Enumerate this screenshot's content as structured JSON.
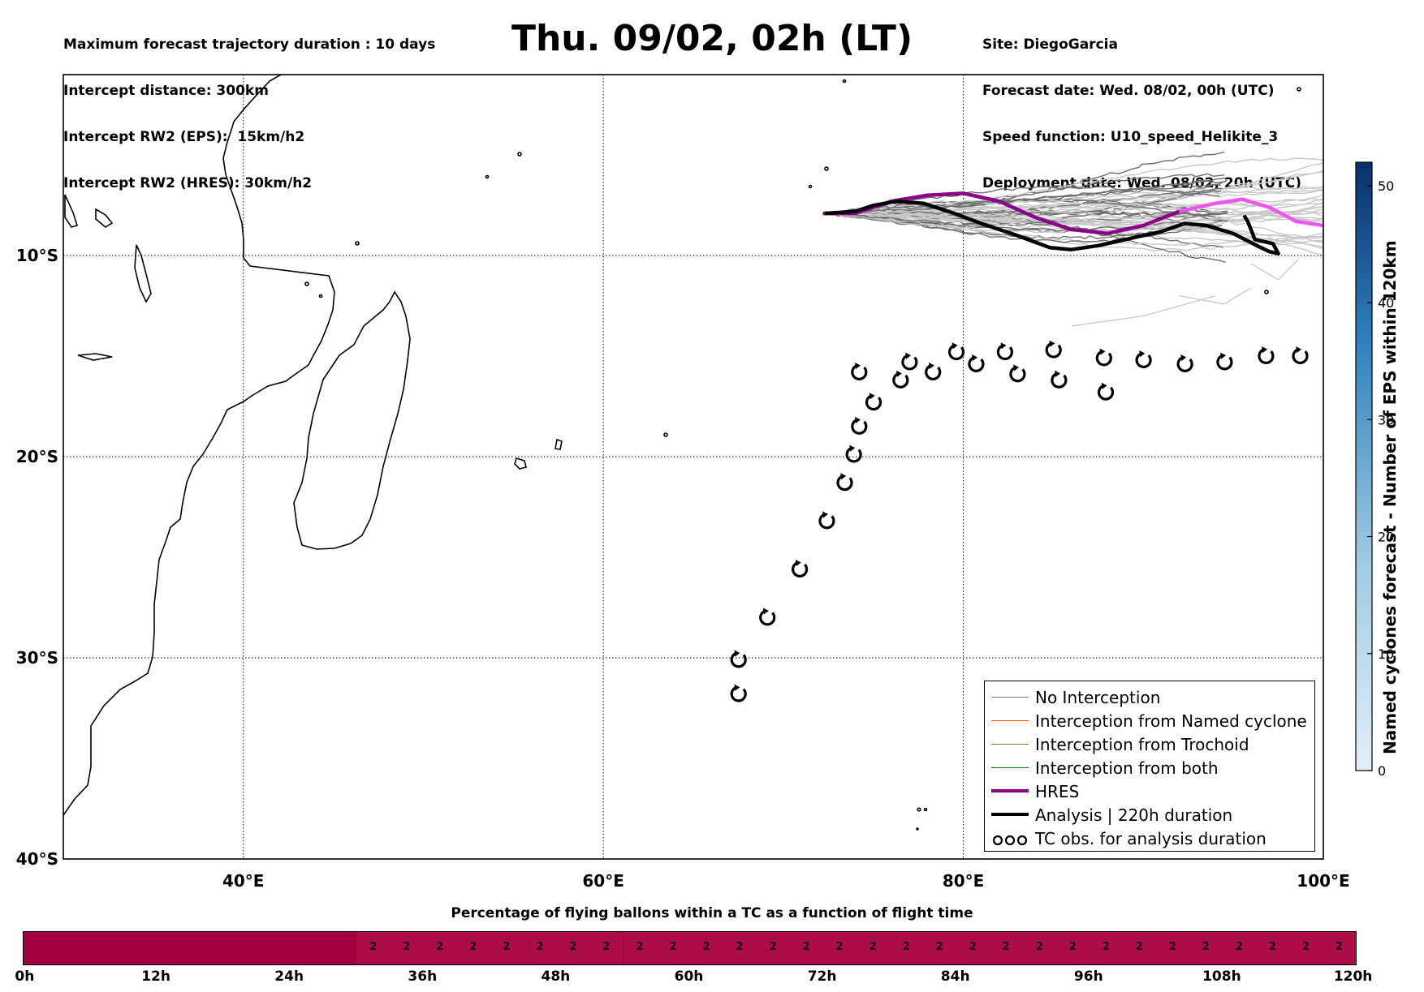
{
  "header_left": [
    "Maximum forecast trajectory duration : 10 days",
    "Intercept distance: 300km",
    "Intercept RW2 (EPS):  15km/h2",
    "Intercept RW2 (HRES): 30km/h2"
  ],
  "header_right": [
    "Site: DiegoGarcia",
    "Forecast date: Wed. 08/02, 00h (UTC)",
    "Speed function: U10_speed_Helikite_3",
    "Deployment date: Wed. 08/02, 20h (UTC)"
  ],
  "title": "Thu. 09/02, 02h (LT)",
  "map": {
    "lon_range": [
      30,
      100
    ],
    "lat_range": [
      -40,
      -1
    ],
    "lon_ticks": [
      {
        "v": 40,
        "label": "40°E"
      },
      {
        "v": 60,
        "label": "60°E"
      },
      {
        "v": 80,
        "label": "80°E"
      },
      {
        "v": 100,
        "label": "100°E"
      }
    ],
    "lat_ticks": [
      {
        "v": -10,
        "label": "10°S"
      },
      {
        "v": -20,
        "label": "20°S"
      },
      {
        "v": -30,
        "label": "30°S"
      },
      {
        "v": -40,
        "label": "40°S"
      }
    ],
    "grid": "dotted"
  },
  "hres_track": [
    [
      72.2,
      -7.9
    ],
    [
      74,
      -7.9
    ],
    [
      76,
      -7.3
    ],
    [
      78,
      -7.0
    ],
    [
      80,
      -6.9
    ],
    [
      82,
      -7.3
    ],
    [
      84,
      -8.1
    ],
    [
      86,
      -8.7
    ],
    [
      88,
      -8.9
    ],
    [
      90,
      -8.5
    ],
    [
      92,
      -7.8
    ],
    [
      94,
      -7.4
    ],
    [
      95.5,
      -7.2
    ],
    [
      97,
      -7.6
    ],
    [
      98.5,
      -8.3
    ],
    [
      100,
      -8.5
    ]
  ],
  "analysis_track": [
    [
      72.3,
      -7.9
    ],
    [
      74,
      -7.8
    ],
    [
      75,
      -7.5
    ],
    [
      76.3,
      -7.3
    ],
    [
      77.8,
      -7.4
    ],
    [
      79.5,
      -7.9
    ],
    [
      81,
      -8.4
    ],
    [
      83,
      -9.0
    ],
    [
      84.8,
      -9.6
    ],
    [
      86,
      -9.7
    ],
    [
      87.5,
      -9.5
    ],
    [
      89.5,
      -9.1
    ],
    [
      91,
      -8.8
    ],
    [
      92.3,
      -8.4
    ],
    [
      93.5,
      -8.5
    ],
    [
      95,
      -8.9
    ],
    [
      96.3,
      -9.5
    ],
    [
      97,
      -9.8
    ],
    [
      97.5,
      -9.9
    ],
    [
      97.2,
      -9.4
    ],
    [
      96.2,
      -9.2
    ],
    [
      95.8,
      -8.3
    ],
    [
      95.6,
      -8.0
    ]
  ],
  "tc_obs": [
    [
      67.5,
      -31.8
    ],
    [
      67.5,
      -30.1
    ],
    [
      69.1,
      -28.0
    ],
    [
      70.9,
      -25.6
    ],
    [
      72.4,
      -23.2
    ],
    [
      73.4,
      -21.3
    ],
    [
      73.9,
      -19.9
    ],
    [
      74.2,
      -18.5
    ],
    [
      75.0,
      -17.3
    ],
    [
      74.2,
      -15.8
    ],
    [
      76.5,
      -16.2
    ],
    [
      77.0,
      -15.3
    ],
    [
      78.3,
      -15.8
    ],
    [
      79.6,
      -14.8
    ],
    [
      80.7,
      -15.4
    ],
    [
      82.3,
      -14.8
    ],
    [
      83.0,
      -15.9
    ],
    [
      85.0,
      -14.7
    ],
    [
      85.3,
      -16.2
    ],
    [
      87.8,
      -15.1
    ],
    [
      87.9,
      -16.8
    ],
    [
      90.0,
      -15.2
    ],
    [
      92.3,
      -15.4
    ],
    [
      94.5,
      -15.3
    ],
    [
      96.8,
      -15.0
    ],
    [
      98.7,
      -15.0
    ]
  ],
  "colorbar": {
    "label": "Named cyclones forecast - Number of EPS within 120km",
    "min": 0,
    "max": 52,
    "ticks": [
      0,
      10,
      20,
      30,
      40,
      50
    ],
    "color_low": "#e3eef9",
    "color_high": "#08306b"
  },
  "legend": [
    {
      "label": "No Interception",
      "color": "#808080",
      "width": 1.5,
      "kind": "line"
    },
    {
      "label": "Interception from Named cyclone",
      "color": "#ff4500",
      "width": 1.5,
      "kind": "line"
    },
    {
      "label": "Interception from Trochoid",
      "color": "#808000",
      "width": 1.5,
      "kind": "line"
    },
    {
      "label": "Interception from both",
      "color": "#008000",
      "width": 1.5,
      "kind": "line"
    },
    {
      "label": "HRES",
      "color": "#8b008b",
      "width": 4,
      "kind": "line"
    },
    {
      "label": "Analysis | 220h duration",
      "color": "#000000",
      "width": 4,
      "kind": "line"
    },
    {
      "label": "TC obs. for analysis duration",
      "color": "#000000",
      "width": 2,
      "kind": "tc"
    }
  ],
  "flight_time_bar": {
    "title": "Percentage of flying ballons within a TC as a function of flight time",
    "color": "#a4003f",
    "hours_total": 120,
    "value_start_hour": 30,
    "value_step_hours": 3,
    "cell_value": "2",
    "tick_labels": [
      "0h",
      "12h",
      "24h",
      "36h",
      "48h",
      "60h",
      "72h",
      "84h",
      "96h",
      "108h",
      "120h"
    ]
  }
}
